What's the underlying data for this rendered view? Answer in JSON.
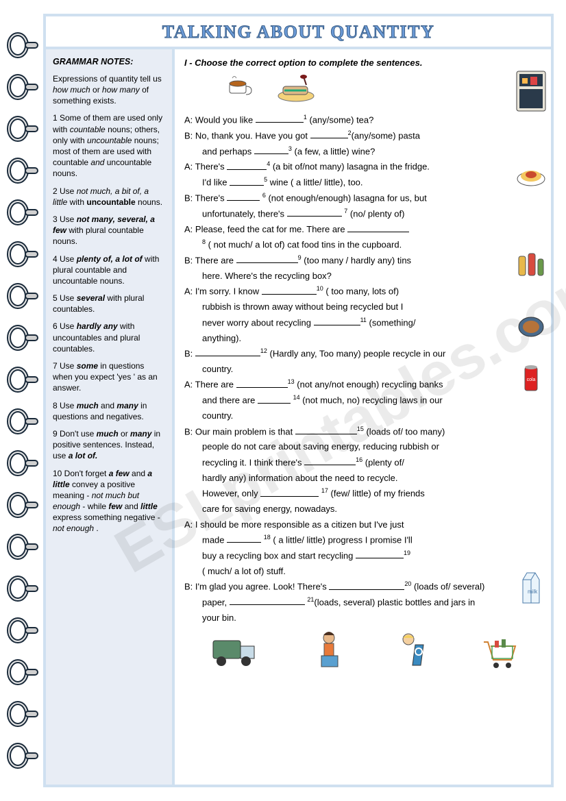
{
  "title": "TALKING ABOUT  QUANTITY",
  "sidebar": {
    "heading": "GRAMMAR NOTES:",
    "intro": "Expressions of quantity tell us <em>how much</em> or <em>how many</em> of something exists.",
    "notes": [
      "1  Some of them are  used only with <em>countable</em> nouns;  others,  only with <em>uncountable</em>  nouns; most of them are  used with countable <em>and</em> uncountable nouns.",
      "2   Use <em>not much, a bit of, a little</em>  with <b>uncountable</b> nouns.",
      "3   Use <b><em>not many, several, a few</em></b>  with plural countable nouns.",
      "4   Use <b><em>plenty of,  a lot of</em></b>  with plural countable and uncountable nouns.",
      "5   Use <b><em>several</em></b> with plural countables.",
      "6   Use <b><em>hardly any</em></b> with  uncountables and plural countables.",
      "7   Use <b><em>some</em></b> in questions when you expect 'yes ' as an answer.",
      "8   Use <b><em>much</em></b> and <b><em>many</em></b> in questions and negatives.",
      "9   Don't use <b><em>much</em></b> or <b><em>many</em></b>  in positive sentences. Instead, use <b><em>a lot of.</em></b>",
      "10   Don't forget <b><em>a few</em></b> and <b><em>a  little</em></b> convey a positive meaning - <em>not much but enough</em> -  while <b><em>few</em></b>    and  <b><em>little</em></b>  express something negative - <em>not enough</em> ."
    ]
  },
  "exercise": {
    "title": "I - Choose the correct option to complete the sentences."
  },
  "watermark": "ESLprintables.com",
  "colors": {
    "frame": "#cfe0f0",
    "sidebar_bg": "#e8edf5",
    "title_fill": "#6b9ad6",
    "title_stroke": "#3a5f8a"
  }
}
